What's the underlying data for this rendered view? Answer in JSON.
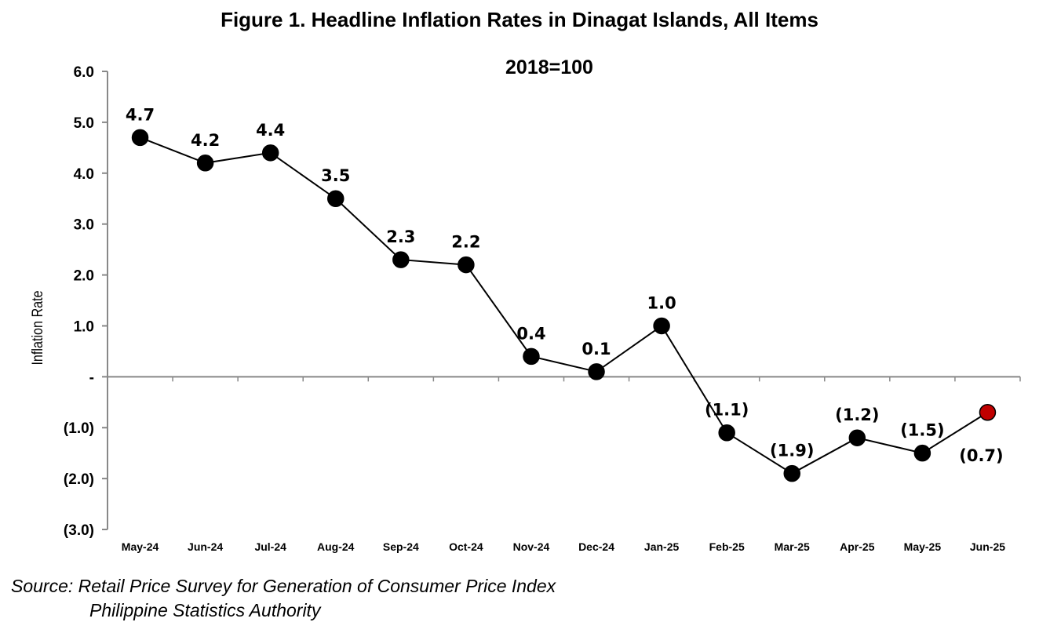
{
  "title": "Figure 1. Headline Inflation Rates in Dinagat Islands, All Items",
  "subtitle": "2018=100",
  "source": {
    "line1": "Source: Retail Price Survey for Generation of Consumer Price Index",
    "line2": "Philippine Statistics Authority"
  },
  "chart_data": {
    "type": "line",
    "title": "Figure 1. Headline Inflation Rates in Dinagat Islands, All Items",
    "subtitle": "2018=100",
    "xlabel": "",
    "ylabel": "Inflation Rate",
    "ylim": [
      -3.0,
      6.0
    ],
    "yticks": [
      6.0,
      5.0,
      4.0,
      3.0,
      2.0,
      1.0,
      0.0,
      -1.0,
      -2.0,
      -3.0
    ],
    "ytick_labels": [
      "6.0",
      "5.0",
      "4.0",
      "3.0",
      "2.0",
      "1.0",
      "-",
      "(1.0)",
      "(2.0)",
      "(3.0)"
    ],
    "categories": [
      "May-24",
      "Jun-24",
      "Jul-24",
      "Aug-24",
      "Sep-24",
      "Oct-24",
      "Nov-24",
      "Dec-24",
      "Jan-25",
      "Feb-25",
      "Mar-25",
      "Apr-25",
      "May-25",
      "Jun-25"
    ],
    "series": [
      {
        "values": [
          4.7,
          4.2,
          4.4,
          3.5,
          2.3,
          2.2,
          0.4,
          0.1,
          1.0,
          -1.1,
          -1.9,
          -1.2,
          -1.5,
          -0.7
        ],
        "labels": [
          "4.7",
          "4.2",
          "4.4",
          "3.5",
          "2.3",
          "2.2",
          "0.4",
          "0.1",
          "1.0",
          "(1.1)",
          "(1.9)",
          "(1.2)",
          "(1.5)",
          "(0.7)"
        ],
        "color": "#000000",
        "highlight_last_color": "#c00000"
      }
    ],
    "grid": false,
    "legend": "none"
  }
}
